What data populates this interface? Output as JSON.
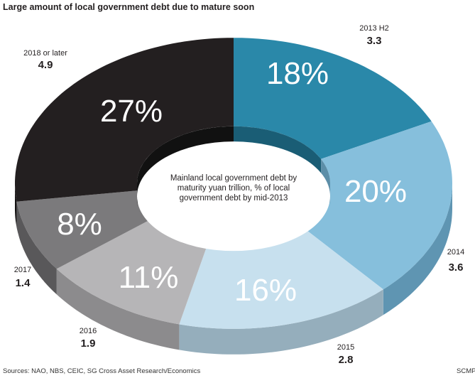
{
  "title": "Large amount of local government debt due to mature soon",
  "source": "Sources: NAO, NBS, CEIC, SG Cross Asset Research/Economics",
  "credit": "SCMP",
  "chart_data": {
    "type": "pie",
    "style": "3d-donut",
    "center_label": "Mainland local government debt by maturity yuan trillion, % of local government debt by mid-2013",
    "center_label_lines": [
      "Mainland local government debt by",
      "maturity yuan trillion, % of local",
      "government debt by mid-2013"
    ],
    "slices": [
      {
        "label": "2013 H2",
        "value": 3.3,
        "value_label": "3.3",
        "percent": 18,
        "percent_label": "18%",
        "color": "#2a88a9",
        "side_color": "#1d6580",
        "inner_color": "#1a5d75"
      },
      {
        "label": "2014",
        "value": 3.6,
        "value_label": "3.6",
        "percent": 20,
        "percent_label": "20%",
        "color": "#86bfdc",
        "side_color": "#5f95b2",
        "inner_color": "#5c8ea8"
      },
      {
        "label": "2015",
        "value": 2.8,
        "value_label": "2.8",
        "percent": 16,
        "percent_label": "16%",
        "color": "#c7e0ee",
        "side_color": "#95aebc",
        "inner_color": "#8ea5b2"
      },
      {
        "label": "2016",
        "value": 1.9,
        "value_label": "1.9",
        "percent": 11,
        "percent_label": "11%",
        "color": "#b6b5b7",
        "side_color": "#8c8b8d",
        "inner_color": "#868587"
      },
      {
        "label": "2017",
        "value": 1.4,
        "value_label": "1.4",
        "percent": 8,
        "percent_label": "8%",
        "color": "#7b7a7c",
        "side_color": "#59585a",
        "inner_color": "#555456"
      },
      {
        "label": "2018 or later",
        "value": 4.9,
        "value_label": "4.9",
        "percent": 27,
        "percent_label": "27%",
        "color": "#231f20",
        "side_color": "#141213",
        "inner_color": "#111"
      }
    ]
  }
}
